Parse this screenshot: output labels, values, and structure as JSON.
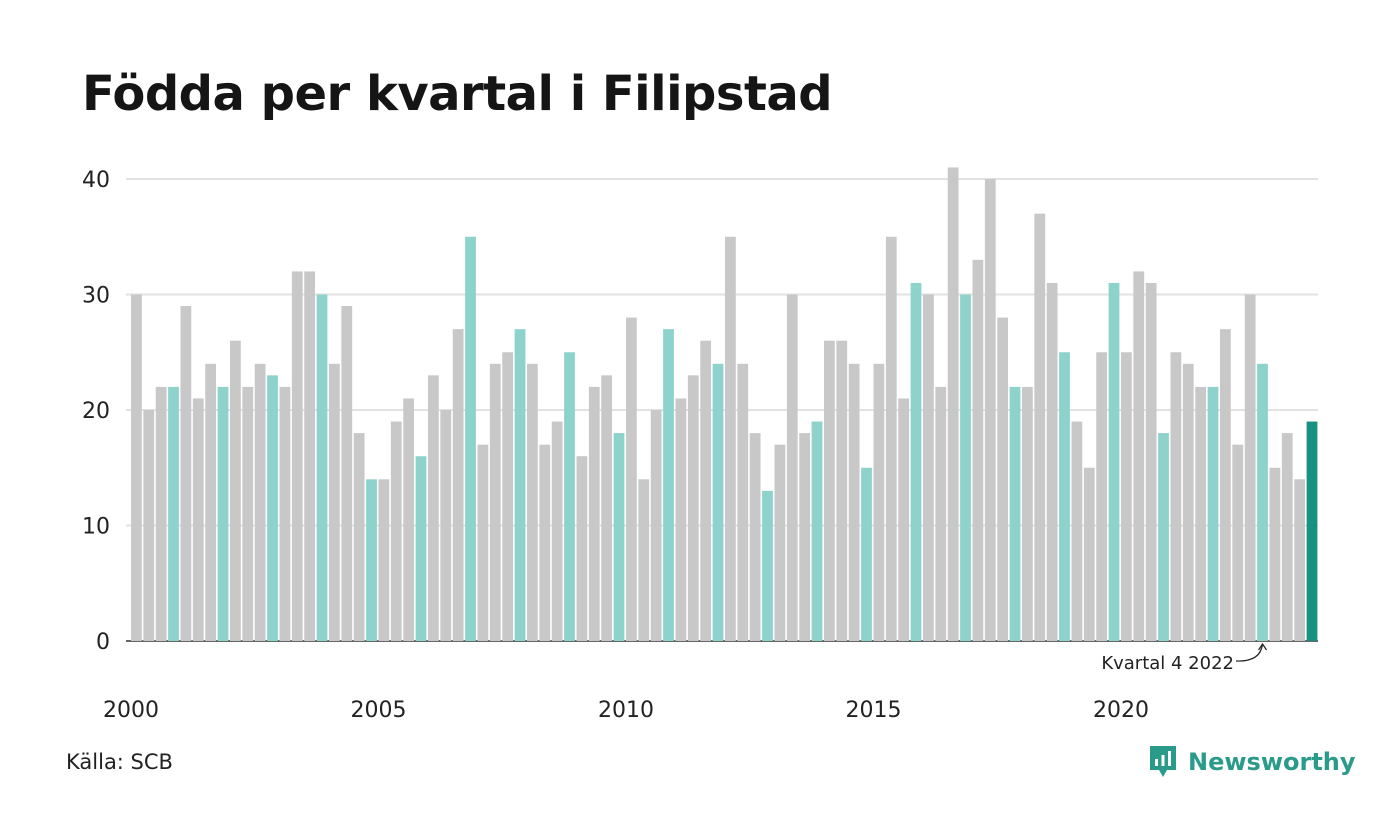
{
  "title": "Födda per kvartal i Filipstad",
  "source": "Källa: SCB",
  "brand": "Newsworthy",
  "colors": {
    "default": "#c8c8c8",
    "q4": "#8dd3cc",
    "latest": "#1a9080",
    "grid": "#e2e2e2",
    "axis": "#333333"
  },
  "chart_data": {
    "type": "bar",
    "title": "Födda per kvartal i Filipstad",
    "xlabel": "",
    "ylabel": "",
    "ylim": [
      0,
      40
    ],
    "yticks": [
      0,
      10,
      20,
      30,
      40
    ],
    "xtick_labels": [
      "2000",
      "2005",
      "2010",
      "2015",
      "2020"
    ],
    "grid": true,
    "start_year": 2000,
    "annotation": "Kvartal 4 2022",
    "values": [
      30,
      20,
      22,
      22,
      29,
      21,
      24,
      22,
      26,
      22,
      24,
      23,
      22,
      32,
      32,
      30,
      24,
      29,
      18,
      14,
      14,
      19,
      21,
      16,
      23,
      20,
      27,
      35,
      17,
      24,
      25,
      27,
      24,
      17,
      19,
      25,
      16,
      22,
      23,
      18,
      28,
      14,
      20,
      27,
      21,
      23,
      26,
      24,
      35,
      24,
      18,
      13,
      17,
      30,
      18,
      19,
      26,
      26,
      24,
      15,
      24,
      35,
      21,
      31,
      30,
      22,
      41,
      30,
      33,
      40,
      28,
      22,
      22,
      37,
      31,
      25,
      19,
      15,
      25,
      31,
      25,
      32,
      31,
      18,
      25,
      24,
      22,
      22,
      27,
      17,
      30,
      24,
      15,
      18,
      14,
      19
    ]
  }
}
